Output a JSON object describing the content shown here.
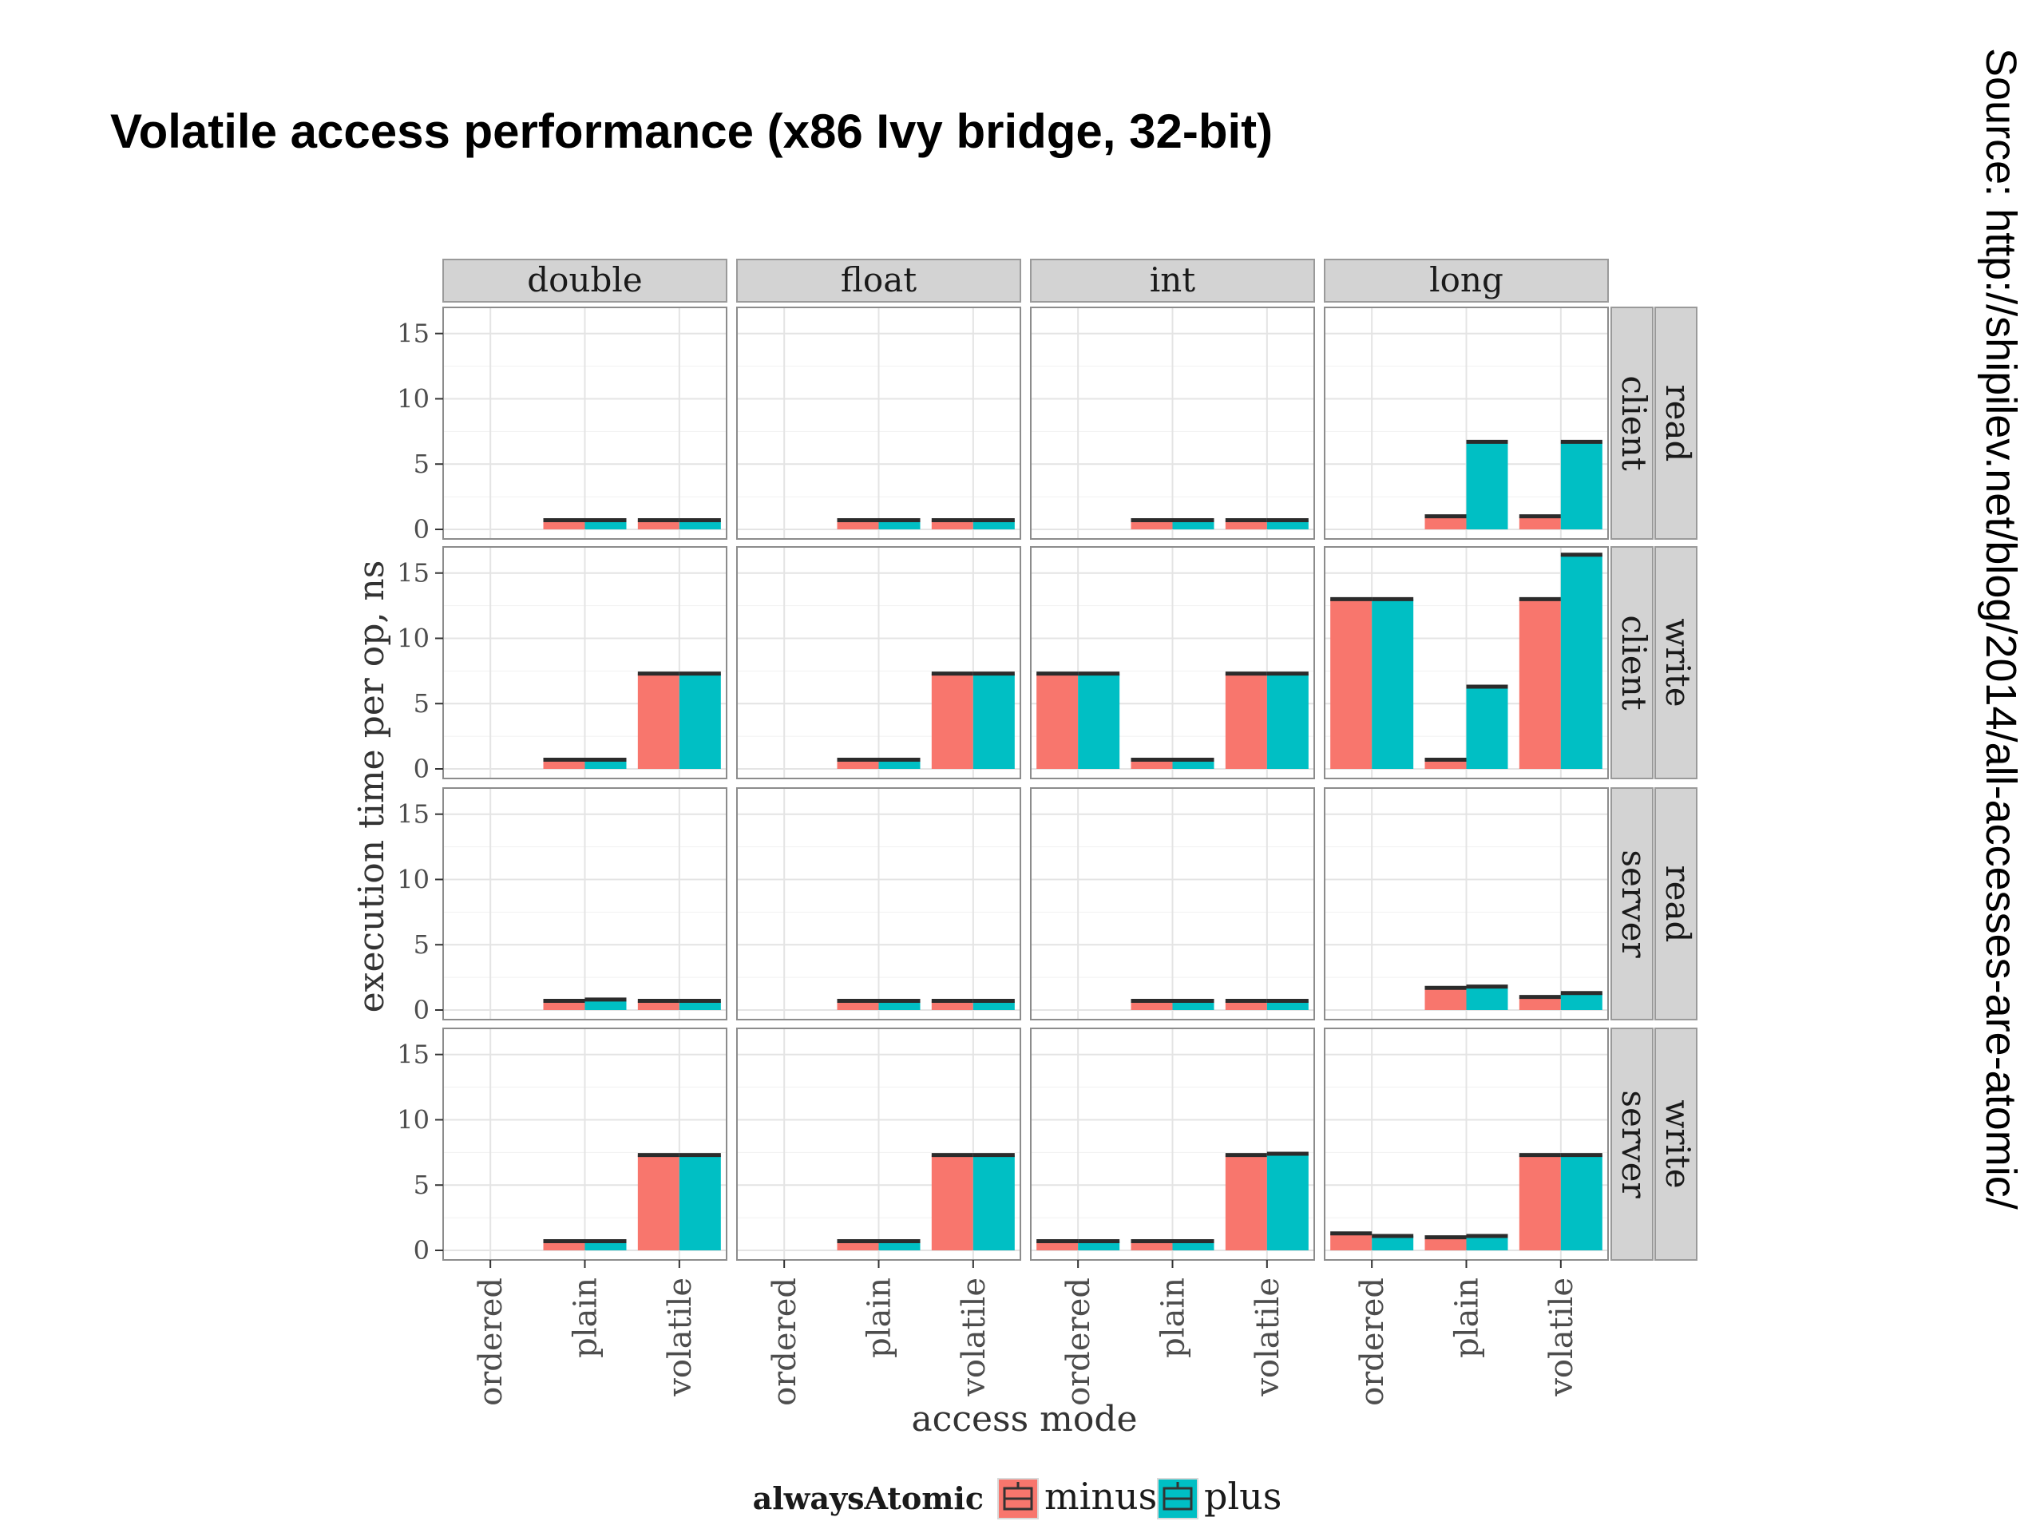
{
  "slide": {
    "title": "Volatile access performance (x86 Ivy bridge, 32-bit)",
    "source": "Source: http://shipilev.net/blog/2014/all-accesses-are-atomic/"
  },
  "colors": {
    "minus": "#F8766D",
    "plus": "#00BFC4",
    "strip": "#D3D3D3",
    "panel_border": "#8c8c8c",
    "grid": "#e4e4e4"
  },
  "chart_data": {
    "type": "bar",
    "title": "Volatile access performance (x86 Ivy bridge, 32-bit)",
    "xlabel": "access mode",
    "ylabel": "execution time per op, ns",
    "ylim": [
      0,
      17
    ],
    "yticks": [
      0,
      5,
      10,
      15
    ],
    "categories": [
      "ordered",
      "plain",
      "volatile"
    ],
    "facet_columns": [
      "double",
      "float",
      "int",
      "long"
    ],
    "facet_rows": [
      {
        "mode": "client",
        "op": "read"
      },
      {
        "mode": "client",
        "op": "write"
      },
      {
        "mode": "server",
        "op": "read"
      },
      {
        "mode": "server",
        "op": "write"
      }
    ],
    "legend": {
      "title": "alwaysAtomic",
      "entries": [
        "minus",
        "plus"
      ],
      "position": "bottom"
    },
    "panels": [
      [
        {
          "minus": [
            null,
            0.7,
            0.7
          ],
          "plus": [
            null,
            0.7,
            0.7
          ]
        },
        {
          "minus": [
            null,
            0.7,
            0.7
          ],
          "plus": [
            null,
            0.7,
            0.7
          ]
        },
        {
          "minus": [
            null,
            0.7,
            0.7
          ],
          "plus": [
            null,
            0.7,
            0.7
          ]
        },
        {
          "minus": [
            null,
            1.0,
            1.0
          ],
          "plus": [
            null,
            6.7,
            6.7
          ]
        }
      ],
      [
        {
          "minus": [
            null,
            0.7,
            7.3
          ],
          "plus": [
            null,
            0.7,
            7.3
          ]
        },
        {
          "minus": [
            null,
            0.7,
            7.3
          ],
          "plus": [
            null,
            0.7,
            7.3
          ]
        },
        {
          "minus": [
            7.3,
            0.7,
            7.3
          ],
          "plus": [
            7.3,
            0.7,
            7.3
          ]
        },
        {
          "minus": [
            13.0,
            0.7,
            13.0
          ],
          "plus": [
            13.0,
            6.3,
            16.4
          ]
        }
      ],
      [
        {
          "minus": [
            null,
            0.7,
            0.7
          ],
          "plus": [
            null,
            0.8,
            0.7
          ]
        },
        {
          "minus": [
            null,
            0.7,
            0.7
          ],
          "plus": [
            null,
            0.7,
            0.7
          ]
        },
        {
          "minus": [
            null,
            0.7,
            0.7
          ],
          "plus": [
            null,
            0.7,
            0.7
          ]
        },
        {
          "minus": [
            null,
            1.7,
            1.0
          ],
          "plus": [
            null,
            1.8,
            1.3
          ]
        }
      ],
      [
        {
          "minus": [
            null,
            0.7,
            7.3
          ],
          "plus": [
            null,
            0.7,
            7.3
          ]
        },
        {
          "minus": [
            null,
            0.7,
            7.3
          ],
          "plus": [
            null,
            0.7,
            7.3
          ]
        },
        {
          "minus": [
            0.7,
            0.7,
            7.3
          ],
          "plus": [
            0.7,
            0.7,
            7.4
          ]
        },
        {
          "minus": [
            1.3,
            1.0,
            7.3
          ],
          "plus": [
            1.1,
            1.1,
            7.3
          ]
        }
      ]
    ]
  }
}
